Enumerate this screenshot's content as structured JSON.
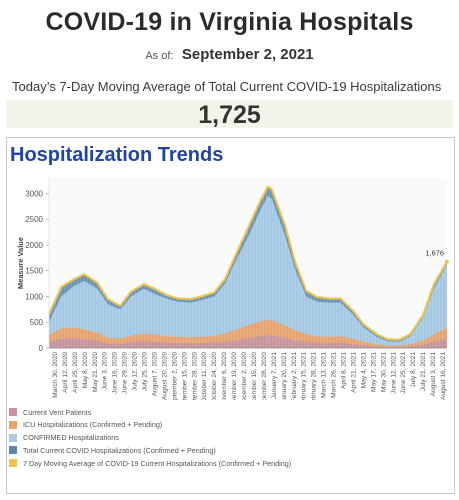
{
  "page": {
    "title": "COVID-19 in Virginia Hospitals",
    "as_of_label": "As of:",
    "as_of_date": "September 2, 2021",
    "subheading": "Today’s 7-Day Moving Average of Total Current COVID-19 Hospitalizations",
    "big_number": "1,725",
    "panel_title": "Hospitalization Trends"
  },
  "chart_data": {
    "type": "area",
    "ylabel": "Measure Value",
    "ylim": [
      0,
      3300
    ],
    "yticks": [
      0,
      500,
      1000,
      1500,
      2000,
      2500,
      3000
    ],
    "grid": false,
    "legend_placement": "bottom",
    "end_label": "1,676",
    "xtick_labels": [
      "March 30, 2020",
      "April 12, 2020",
      "April 25, 2020",
      "May 8, 2020",
      "May 21, 2020",
      "June 3, 2020",
      "June 16, 2020",
      "June 29, 2020",
      "July 12, 2020",
      "July 25, 2020",
      "August 7, 2020",
      "August 20, 2020",
      "September 2, 2020",
      "September 15, 2020",
      "September 28, 2020",
      "October 11, 2020",
      "October 24, 2020",
      "November 6, 2020",
      "November 19, 2020",
      "December 2, 2020",
      "December 15, 2020",
      "December 28, 2020",
      "January 7, 2021",
      "January 20, 2021",
      "February 2, 2021",
      "February 15, 2021",
      "February 28, 2021",
      "March 13, 2021",
      "March 26, 2021",
      "April 8, 2021",
      "April 21, 2021",
      "May 4, 2021",
      "May 17, 2021",
      "May 30, 2021",
      "June 12, 2021",
      "June 25, 2021",
      "July 8, 2021",
      "July 21, 2021",
      "August 3, 2021",
      "August 16, 2021"
    ],
    "x": [
      "2020-03-30",
      "2020-04-15",
      "2020-05-01",
      "2020-05-15",
      "2020-06-01",
      "2020-06-15",
      "2020-07-01",
      "2020-07-15",
      "2020-08-01",
      "2020-08-15",
      "2020-09-01",
      "2020-09-15",
      "2020-10-01",
      "2020-10-15",
      "2020-11-01",
      "2020-11-15",
      "2020-12-01",
      "2020-12-15",
      "2021-01-01",
      "2021-01-10",
      "2021-01-15",
      "2021-02-01",
      "2021-02-15",
      "2021-03-01",
      "2021-03-15",
      "2021-04-01",
      "2021-04-15",
      "2021-05-01",
      "2021-05-15",
      "2021-06-01",
      "2021-06-15",
      "2021-07-01",
      "2021-07-15",
      "2021-08-01",
      "2021-08-15",
      "2021-09-01"
    ],
    "series": [
      {
        "name": "Current Vent Patients",
        "color": "#c4939f",
        "values": [
          120,
          180,
          190,
          170,
          140,
          90,
          80,
          110,
          130,
          120,
          100,
          95,
          90,
          95,
          100,
          120,
          150,
          190,
          230,
          250,
          240,
          190,
          150,
          120,
          100,
          95,
          100,
          80,
          50,
          30,
          20,
          20,
          30,
          60,
          120,
          180
        ]
      },
      {
        "name": "ICU Hospitalizations (Confirmed + Pending)",
        "color": "#e8a26a",
        "values": [
          250,
          380,
          400,
          360,
          300,
          200,
          180,
          240,
          280,
          260,
          230,
          220,
          210,
          220,
          240,
          280,
          360,
          440,
          520,
          560,
          540,
          440,
          340,
          270,
          230,
          220,
          230,
          180,
          120,
          70,
          50,
          50,
          70,
          140,
          260,
          400
        ]
      },
      {
        "name": "CONFIRMED Hospitalizations",
        "color": "#a9cbe6",
        "values": [
          500,
          1000,
          1200,
          1300,
          1150,
          850,
          750,
          1000,
          1150,
          1050,
          950,
          900,
          880,
          930,
          1000,
          1250,
          1750,
          2150,
          2700,
          2950,
          2900,
          2200,
          1500,
          1000,
          900,
          880,
          880,
          650,
          400,
          220,
          130,
          120,
          230,
          600,
          1150,
          1620
        ]
      },
      {
        "name": "Total Current COVID Hospitalizations (Confirmed + Pending)",
        "color": "#5b88ad",
        "values": [
          700,
          1200,
          1350,
          1450,
          1280,
          950,
          820,
          1100,
          1250,
          1150,
          1020,
          960,
          950,
          1000,
          1080,
          1350,
          1900,
          2350,
          2900,
          3150,
          3100,
          2400,
          1650,
          1100,
          980,
          950,
          960,
          720,
          450,
          260,
          160,
          150,
          260,
          650,
          1250,
          1690
        ]
      },
      {
        "name": "7 Day Moving Average of COVID-19 Current Hospitalizations (Confirmed + Pending)",
        "color": "#f0c24b",
        "values": [
          650,
          1180,
          1330,
          1430,
          1270,
          950,
          820,
          1090,
          1240,
          1150,
          1020,
          960,
          950,
          1000,
          1080,
          1340,
          1880,
          2330,
          2880,
          3130,
          3080,
          2400,
          1650,
          1110,
          990,
          960,
          960,
          730,
          460,
          270,
          170,
          160,
          265,
          650,
          1240,
          1676
        ]
      }
    ]
  }
}
